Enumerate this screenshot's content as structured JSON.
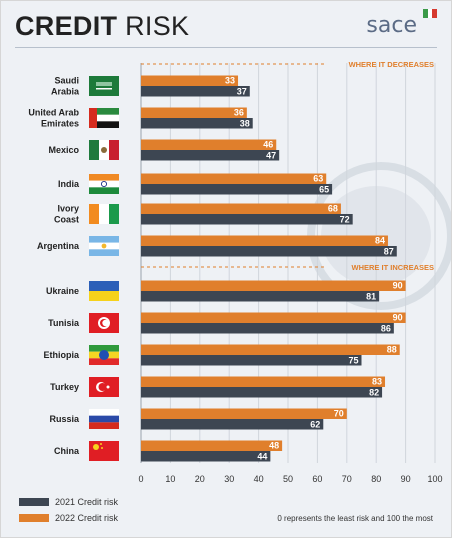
{
  "page": {
    "title_bold": "CREDIT",
    "title_light": " RISK",
    "logo_text": "sace",
    "logo_colors": [
      "#3a9a48",
      "#ffffff",
      "#d63a2f"
    ]
  },
  "colors": {
    "series_2021": "#3d4652",
    "series_2022": "#e07f2c",
    "section_header": "#e07f2c"
  },
  "chart_data": {
    "type": "bar",
    "orientation": "horizontal",
    "xlim": [
      0,
      100
    ],
    "xticks": [
      0,
      10,
      20,
      30,
      40,
      50,
      60,
      70,
      80,
      90,
      100
    ],
    "grid": true,
    "legend_position": "bottom-left",
    "sections": [
      "WHERE IT DECREASES",
      "WHERE IT INCREASES"
    ],
    "categories": [
      {
        "label": "Saudi\nArabia",
        "flag": "saudi-arabia",
        "section": 0
      },
      {
        "label": "United Arab\nEmirates",
        "flag": "uae",
        "section": 0
      },
      {
        "label": "Mexico",
        "flag": "mexico",
        "section": 0
      },
      {
        "label": "India",
        "flag": "india",
        "section": 0
      },
      {
        "label": "Ivory\nCoast",
        "flag": "ivory-coast",
        "section": 0
      },
      {
        "label": "Argentina",
        "flag": "argentina",
        "section": 0
      },
      {
        "label": "Ukraine",
        "flag": "ukraine",
        "section": 1
      },
      {
        "label": "Tunisia",
        "flag": "tunisia",
        "section": 1
      },
      {
        "label": "Ethiopia",
        "flag": "ethiopia",
        "section": 1
      },
      {
        "label": "Turkey",
        "flag": "turkey",
        "section": 1
      },
      {
        "label": "Russia",
        "flag": "russia",
        "section": 1
      },
      {
        "label": "China",
        "flag": "china",
        "section": 1
      }
    ],
    "series": [
      {
        "name": "2022 Credit risk",
        "values": [
          33,
          36,
          46,
          63,
          68,
          84,
          90,
          90,
          88,
          83,
          70,
          48
        ]
      },
      {
        "name": "2021 Credit risk",
        "values": [
          37,
          38,
          47,
          65,
          72,
          87,
          81,
          86,
          75,
          82,
          62,
          44
        ]
      }
    ]
  },
  "legend": {
    "label_2021": "2021 Credit risk",
    "label_2022": "2022 Credit risk"
  },
  "note": "0 represents the least risk and 100 the most"
}
